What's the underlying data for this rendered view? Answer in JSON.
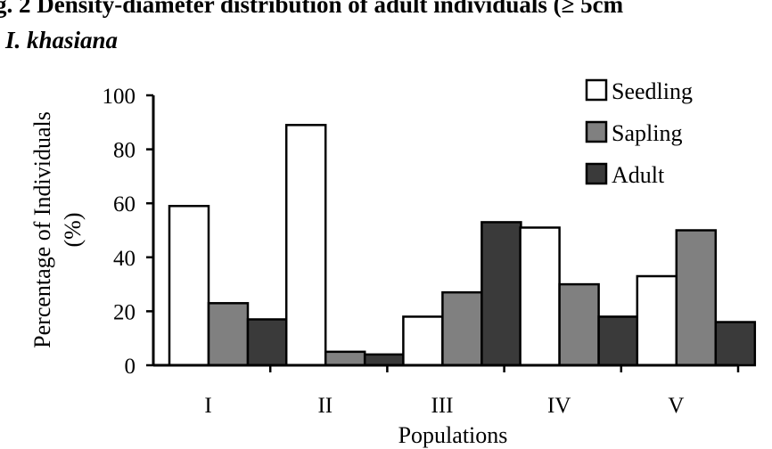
{
  "caption": {
    "line1": "g. 2 Density-diameter distribution of adult individuals (≥ 5cm",
    "line2": "I. khasiana"
  },
  "chart_data": {
    "type": "bar",
    "categories": [
      "I",
      "II",
      "III",
      "IV",
      "V"
    ],
    "series": [
      {
        "name": "Seedling",
        "values": [
          59,
          89,
          18,
          51,
          33
        ],
        "color": "#ffffff"
      },
      {
        "name": "Sapling",
        "values": [
          23,
          5,
          27,
          30,
          50
        ],
        "color": "#808080"
      },
      {
        "name": "Adult",
        "values": [
          17,
          4,
          53,
          18,
          16
        ],
        "color": "#3a3a3a"
      }
    ],
    "xlabel": "Populations",
    "ylabel_line1": "Percentage of Individuals",
    "ylabel_line2": "(%)",
    "ylim": [
      0,
      100
    ],
    "yticks": [
      0,
      20,
      40,
      60,
      80,
      100
    ],
    "grid": false,
    "legend_position": "top-right"
  }
}
